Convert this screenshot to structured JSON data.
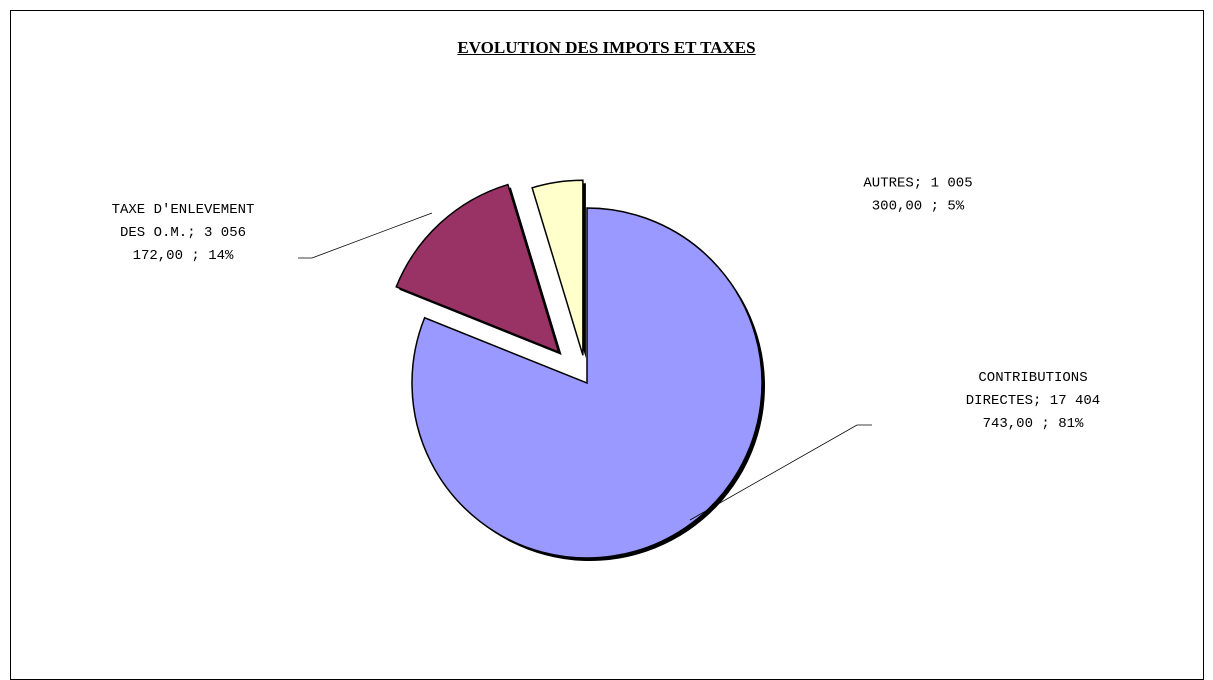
{
  "chart_data": {
    "type": "pie",
    "title": "EVOLUTION DES IMPOTS ET TAXES",
    "slices": [
      {
        "name": "CONTRIBUTIONS DIRECTES",
        "value": 17404743.0,
        "percent": 81,
        "label_lines": [
          "CONTRIBUTIONS",
          "DIRECTES; 17 404",
          "743,00 ; 81%"
        ],
        "color": "#9999ff",
        "exploded": false
      },
      {
        "name": "TAXE D'ENLEVEMENT DES O.M.",
        "value": 3056172.0,
        "percent": 14,
        "label_lines": [
          "TAXE D'ENLEVEMENT",
          "DES O.M.; 3 056",
          "172,00 ; 14%"
        ],
        "color": "#993366",
        "exploded": true
      },
      {
        "name": "AUTRES",
        "value": 1005300.0,
        "percent": 5,
        "label_lines": [
          "AUTRES; 1 005",
          "300,00 ; 5%"
        ],
        "color": "#ffffcc",
        "exploded": true
      }
    ],
    "legend": "none",
    "data_labels": "outside"
  }
}
